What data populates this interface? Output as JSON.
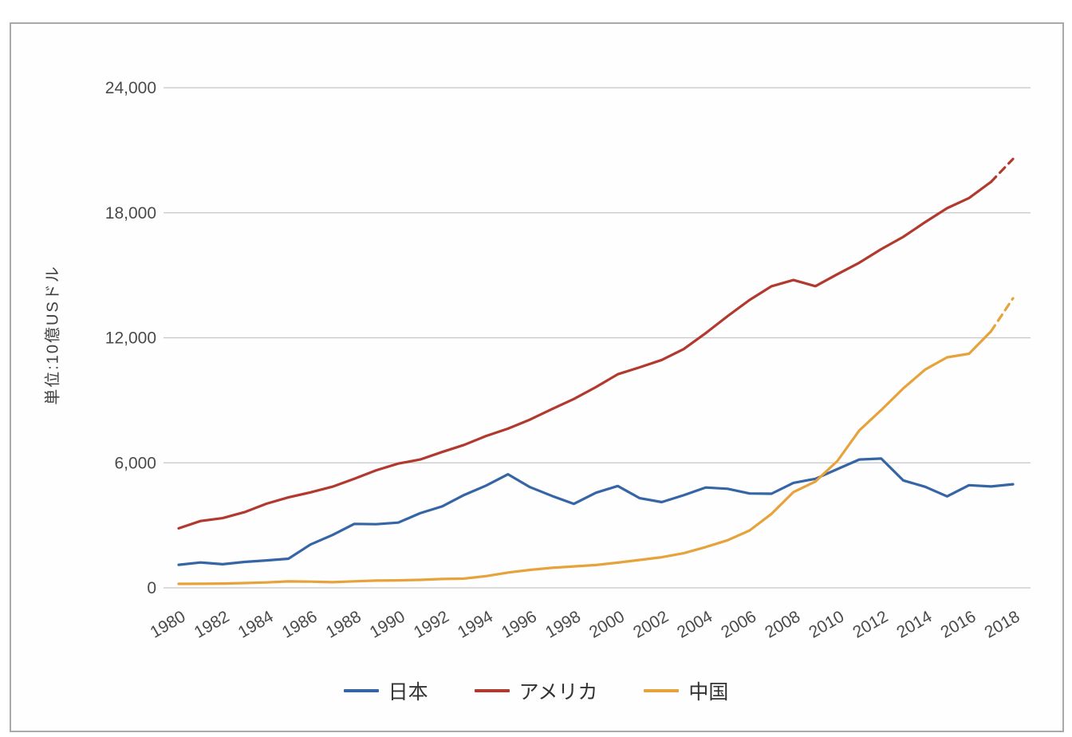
{
  "chart_data": {
    "type": "line",
    "title": "",
    "xlabel": "",
    "ylabel": "単位:10億USドル",
    "ylim": [
      0,
      24000
    ],
    "grid": true,
    "legend_position": "bottom",
    "yticks": [
      0,
      6000,
      12000,
      18000,
      24000
    ],
    "ytick_labels": [
      "0",
      "6,000",
      "12,000",
      "18,000",
      "24,000"
    ],
    "xticks": [
      1980,
      1982,
      1984,
      1986,
      1988,
      1990,
      1992,
      1994,
      1996,
      1998,
      2000,
      2002,
      2004,
      2006,
      2008,
      2010,
      2012,
      2014,
      2016,
      2018
    ],
    "years": [
      1980,
      1981,
      1982,
      1983,
      1984,
      1985,
      1986,
      1987,
      1988,
      1989,
      1990,
      1991,
      1992,
      1993,
      1994,
      1995,
      1996,
      1997,
      1998,
      1999,
      2000,
      2001,
      2002,
      2003,
      2004,
      2005,
      2006,
      2007,
      2008,
      2009,
      2010,
      2011,
      2012,
      2013,
      2014,
      2015,
      2016,
      2017,
      2018
    ],
    "series": [
      {
        "name": "日本",
        "color": "#3565a5",
        "dashed_from": null,
        "values": [
          1105,
          1218,
          1134,
          1243,
          1318,
          1399,
          2079,
          2533,
          3071,
          3054,
          3132,
          3584,
          3908,
          4454,
          4907,
          5449,
          4833,
          4414,
          4032,
          4562,
          4887,
          4303,
          4115,
          4445,
          4815,
          4755,
          4530,
          4515,
          5037,
          5231,
          5700,
          6157,
          6203,
          5155,
          4850,
          4389,
          4926,
          4866,
          4971
        ]
      },
      {
        "name": "アメリカ",
        "color": "#b2392e",
        "dashed_from": 2017,
        "values": [
          2857,
          3207,
          3344,
          3634,
          4038,
          4339,
          4580,
          4855,
          5236,
          5642,
          5963,
          6158,
          6520,
          6859,
          7287,
          7640,
          8073,
          8578,
          9063,
          9631,
          10252,
          10582,
          10936,
          11458,
          12217,
          13039,
          13816,
          14474,
          14770,
          14478,
          15049,
          15600,
          16254,
          16843,
          17551,
          18219,
          18707,
          19485,
          20580
        ]
      },
      {
        "name": "中国",
        "color": "#e6a33c",
        "dashed_from": 2017,
        "values": [
          191,
          196,
          205,
          231,
          260,
          309,
          300,
          273,
          312,
          348,
          360,
          383,
          426,
          444,
          564,
          734,
          863,
          961,
          1029,
          1094,
          1211,
          1339,
          1471,
          1660,
          1955,
          2286,
          2752,
          3550,
          4594,
          5102,
          6087,
          7552,
          8532,
          9570,
          10476,
          11062,
          11233,
          12310,
          13895
        ]
      }
    ]
  }
}
